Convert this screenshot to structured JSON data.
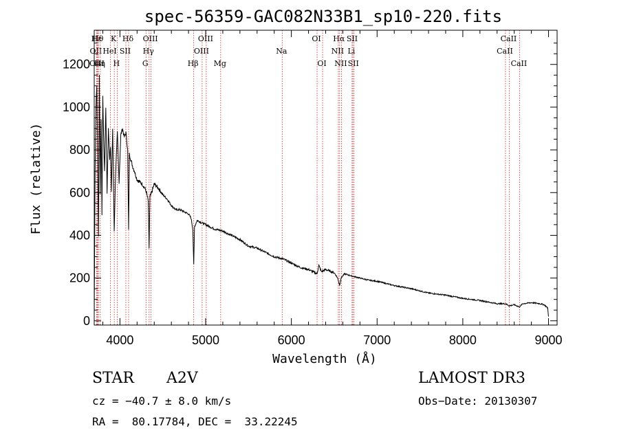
{
  "chart_data": {
    "type": "line",
    "title": "spec-56359-GAC082N33B1_sp10-220.fits",
    "xlabel": "Wavelength (Å)",
    "ylabel": "Flux (relative)",
    "xlim": [
      3700,
      9100
    ],
    "ylim": [
      -20,
      1360
    ],
    "xticks": [
      4000,
      5000,
      6000,
      7000,
      8000,
      9000
    ],
    "yticks": [
      0,
      200,
      400,
      600,
      800,
      1000,
      1200
    ],
    "series": [
      {
        "name": "flux",
        "x": [
          3700,
          3710,
          3720,
          3730,
          3740,
          3750,
          3760,
          3770,
          3780,
          3790,
          3800,
          3810,
          3820,
          3835,
          3850,
          3865,
          3880,
          3890,
          3900,
          3915,
          3933,
          3950,
          3970,
          3990,
          4010,
          4030,
          4050,
          4070,
          4090,
          4101,
          4110,
          4130,
          4150,
          4170,
          4200,
          4230,
          4260,
          4290,
          4310,
          4330,
          4340,
          4350,
          4370,
          4400,
          4450,
          4500,
          4550,
          4600,
          4650,
          4700,
          4750,
          4800,
          4830,
          4850,
          4861,
          4870,
          4900,
          4950,
          5000,
          5050,
          5100,
          5200,
          5300,
          5400,
          5500,
          5600,
          5700,
          5800,
          5900,
          6000,
          6100,
          6200,
          6300,
          6320,
          6350,
          6400,
          6500,
          6540,
          6563,
          6580,
          6620,
          6700,
          6800,
          6900,
          7000,
          7200,
          7400,
          7600,
          7800,
          8000,
          8200,
          8400,
          8500,
          8540,
          8600,
          8660,
          8700,
          8800,
          8900,
          8950,
          8990,
          9000
        ],
        "flux": [
          20,
          700,
          1000,
          1100,
          780,
          400,
          1150,
          600,
          950,
          500,
          1050,
          850,
          700,
          1000,
          600,
          900,
          760,
          820,
          600,
          900,
          420,
          700,
          880,
          650,
          870,
          900,
          860,
          880,
          800,
          420,
          780,
          750,
          720,
          700,
          660,
          650,
          640,
          620,
          600,
          560,
          340,
          580,
          600,
          640,
          620,
          590,
          570,
          540,
          520,
          520,
          510,
          500,
          480,
          430,
          260,
          440,
          470,
          460,
          450,
          440,
          430,
          420,
          400,
          380,
          350,
          340,
          320,
          300,
          290,
          270,
          250,
          240,
          220,
          260,
          230,
          240,
          225,
          200,
          165,
          200,
          220,
          210,
          200,
          190,
          185,
          165,
          150,
          130,
          120,
          105,
          95,
          80,
          80,
          70,
          75,
          65,
          80,
          85,
          80,
          75,
          60,
          20
        ]
      }
    ],
    "lines": [
      {
        "name": "Hε",
        "wave": 3734,
        "row": 1
      },
      {
        "name": "Hθ",
        "wave": 3750,
        "row": 1
      },
      {
        "name": "OII",
        "wave": 3727,
        "row": 2
      },
      {
        "name": "OIII",
        "wave": 3740,
        "row": 3
      },
      {
        "name": "Hη",
        "wave": 3771,
        "row": 3
      },
      {
        "name": "K",
        "wave": 3934,
        "row": 1
      },
      {
        "name": "H",
        "wave": 3968,
        "row": 3
      },
      {
        "name": "HeI",
        "wave": 3889,
        "row": 2
      },
      {
        "name": "SII",
        "wave": 4069,
        "row": 2
      },
      {
        "name": "Hδ",
        "wave": 4101,
        "row": 1
      },
      {
        "name": "OIII",
        "wave": 4363,
        "row": 1
      },
      {
        "name": "Hγ",
        "wave": 4340,
        "row": 2
      },
      {
        "name": "G",
        "wave": 4304,
        "row": 3
      },
      {
        "name": "Hβ",
        "wave": 4861,
        "row": 3
      },
      {
        "name": "OIII",
        "wave": 4959,
        "row": 2
      },
      {
        "name": "OIII",
        "wave": 5007,
        "row": 1
      },
      {
        "name": "Mg",
        "wave": 5175,
        "row": 3
      },
      {
        "name": "Na",
        "wave": 5893,
        "row": 2
      },
      {
        "name": "OI",
        "wave": 6300,
        "row": 1
      },
      {
        "name": "OI",
        "wave": 6364,
        "row": 3
      },
      {
        "name": "Hα",
        "wave": 6563,
        "row": 1
      },
      {
        "name": "NII",
        "wave": 6548,
        "row": 2
      },
      {
        "name": "NII",
        "wave": 6584,
        "row": 3
      },
      {
        "name": "SII",
        "wave": 6717,
        "row": 1
      },
      {
        "name": "SII",
        "wave": 6731,
        "row": 3
      },
      {
        "name": "Li",
        "wave": 6708,
        "row": 2
      },
      {
        "name": "CaII",
        "wave": 8498,
        "row": 2
      },
      {
        "name": "CaII",
        "wave": 8542,
        "row": 1
      },
      {
        "name": "CaII",
        "wave": 8662,
        "row": 3
      }
    ]
  },
  "info": {
    "class_label": "STAR",
    "subclass_label": "A2V",
    "survey": "LAMOST DR3",
    "cz": "cz = −40.7 ± 8.0 km/s",
    "obs_date": "Obs−Date: 20130307",
    "coords": "RA =  80.17784, DEC =  33.22245"
  },
  "colors": {
    "line_marker": "#cc2222",
    "spectrum": "#000000",
    "axes": "#000000"
  }
}
